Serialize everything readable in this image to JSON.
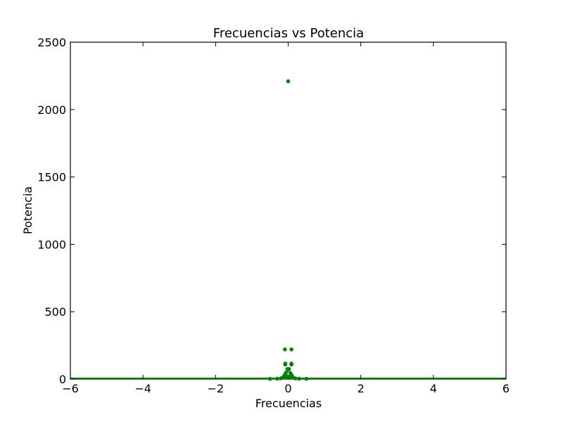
{
  "chart_data": {
    "type": "scatter",
    "title": "Frecuencias vs Potencia",
    "xlabel": "Frecuencias",
    "ylabel": "Potencia",
    "xlim": [
      -6,
      6
    ],
    "ylim": [
      0,
      2500
    ],
    "xticks": [
      "−6",
      "−4",
      "−2",
      "0",
      "2",
      "4",
      "6"
    ],
    "xtick_values": [
      -6,
      -4,
      -2,
      0,
      2,
      4,
      6
    ],
    "yticks": [
      "0",
      "500",
      "1000",
      "1500",
      "2000",
      "2500"
    ],
    "ytick_values": [
      0,
      500,
      1000,
      1500,
      2000,
      2500
    ],
    "grid": false,
    "marker_color": "#008000",
    "series": [
      {
        "points": [
          {
            "x": 0.0,
            "y": 2210
          },
          {
            "x": -0.09,
            "y": 220
          },
          {
            "x": 0.09,
            "y": 220
          },
          {
            "x": -0.08,
            "y": 115
          },
          {
            "x": -0.08,
            "y": 108
          },
          {
            "x": 0.09,
            "y": 115
          },
          {
            "x": 0.09,
            "y": 108
          },
          {
            "x": -0.02,
            "y": 75
          },
          {
            "x": 0.02,
            "y": 75
          },
          {
            "x": 0.0,
            "y": 70
          },
          {
            "x": -0.06,
            "y": 48
          },
          {
            "x": 0.06,
            "y": 45
          },
          {
            "x": -0.1,
            "y": 30
          },
          {
            "x": 0.1,
            "y": 28
          },
          {
            "x": -0.04,
            "y": 20
          },
          {
            "x": 0.04,
            "y": 18
          },
          {
            "x": -0.14,
            "y": 12
          },
          {
            "x": 0.14,
            "y": 10
          },
          {
            "x": -0.2,
            "y": 6
          },
          {
            "x": 0.2,
            "y": 5
          },
          {
            "x": -0.3,
            "y": 3
          },
          {
            "x": 0.3,
            "y": 3
          },
          {
            "x": -0.5,
            "y": 2
          },
          {
            "x": 0.5,
            "y": 2
          }
        ],
        "baseline_y": 1
      }
    ]
  }
}
